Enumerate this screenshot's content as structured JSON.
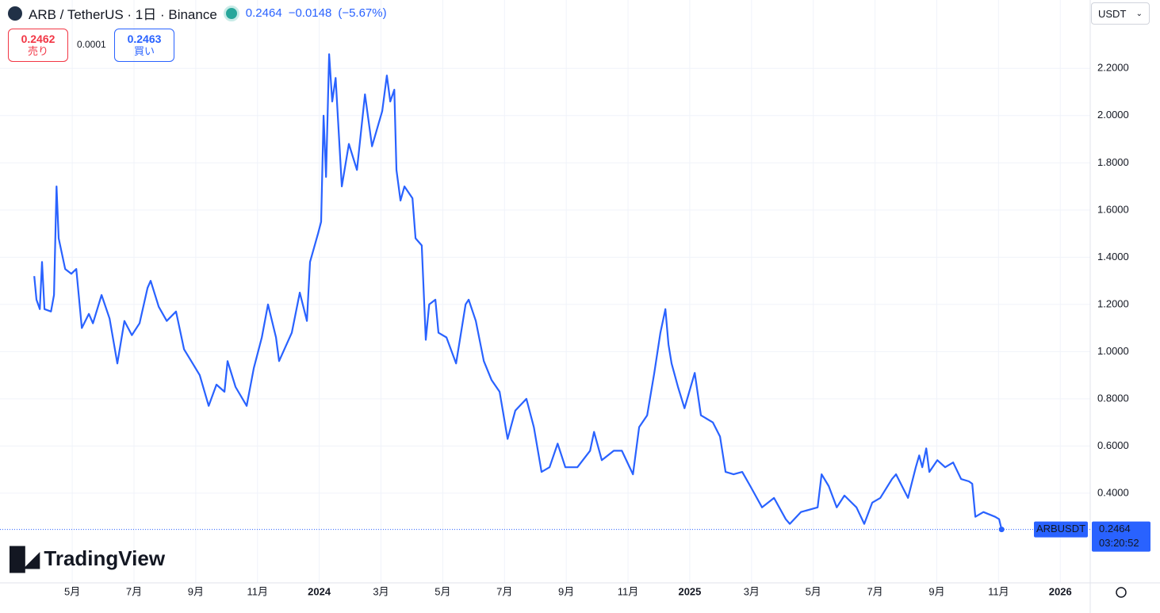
{
  "header": {
    "change": "−0.0148",
    "change_pct": "(−5.67%)",
    "sell_price": "0.2462",
    "sell_label": "売り",
    "spread": "0.0001",
    "buy_price": "0.2463",
    "buy_label": "買い",
    "currency": "USDT",
    "brand": "TradingView",
    "countdown": "03:20:52"
  },
  "chart_data": {
    "type": "line",
    "title": "ARB / TetherUS · 1日 · Binance",
    "x": [
      2.77,
      2.84,
      2.95,
      3.02,
      3.1,
      3.31,
      3.41,
      3.49,
      3.56,
      3.77,
      3.97,
      4.13,
      4.31,
      4.54,
      4.67,
      4.95,
      5.21,
      5.46,
      5.69,
      5.93,
      6.18,
      6.44,
      6.54,
      6.8,
      7.06,
      7.36,
      7.62,
      7.9,
      8.13,
      8.42,
      8.67,
      8.93,
      9.03,
      9.29,
      9.65,
      9.88,
      10.14,
      10.34,
      10.6,
      10.7,
      11.11,
      11.37,
      11.6,
      11.7,
      11.96,
      12.06,
      12.14,
      12.22,
      12.32,
      12.42,
      12.53,
      12.73,
      12.96,
      13.22,
      13.48,
      13.71,
      14.04,
      14.19,
      14.3,
      14.43,
      14.5,
      14.63,
      14.76,
      15.02,
      15.12,
      15.32,
      15.45,
      15.56,
      15.76,
      15.86,
      16.12,
      16.43,
      16.74,
      16.84,
      17.07,
      17.33,
      17.58,
      17.84,
      18.1,
      18.35,
      18.71,
      18.95,
      19.2,
      19.46,
      19.72,
      19.97,
      20.36,
      20.77,
      20.9,
      21.15,
      21.54,
      21.8,
      22.16,
      22.36,
      22.62,
      22.85,
      23.05,
      23.21,
      23.31,
      23.41,
      23.62,
      23.83,
      24.16,
      24.36,
      24.75,
      24.98,
      25.16,
      25.42,
      25.7,
      25.96,
      26.34,
      26.73,
      27.11,
      27.24,
      27.6,
      28.14,
      28.27,
      28.5,
      28.76,
      29.01,
      29.4,
      29.65,
      29.91,
      30.17,
      30.55,
      30.68,
      31.07,
      31.32,
      31.43,
      31.53,
      31.66,
      31.76,
      32.02,
      32.27,
      32.53,
      32.79,
      33.04,
      33.15,
      33.25,
      33.51,
      33.89,
      34.02,
      34.1
    ],
    "series": [
      {
        "name": "ARBUSDT",
        "color": "#2962ff",
        "values": [
          1.32,
          1.22,
          1.18,
          1.38,
          1.18,
          1.17,
          1.24,
          1.7,
          1.48,
          1.35,
          1.33,
          1.35,
          1.1,
          1.16,
          1.12,
          1.24,
          1.14,
          0.95,
          1.13,
          1.07,
          1.12,
          1.27,
          1.3,
          1.19,
          1.13,
          1.17,
          1.01,
          0.95,
          0.9,
          0.77,
          0.86,
          0.83,
          0.96,
          0.85,
          0.77,
          0.93,
          1.06,
          1.2,
          1.06,
          0.96,
          1.08,
          1.25,
          1.13,
          1.38,
          1.5,
          1.55,
          2.0,
          1.74,
          2.26,
          2.06,
          2.16,
          1.7,
          1.88,
          1.77,
          2.09,
          1.87,
          2.02,
          2.17,
          2.06,
          2.11,
          1.77,
          1.64,
          1.7,
          1.65,
          1.48,
          1.45,
          1.05,
          1.2,
          1.22,
          1.08,
          1.06,
          0.95,
          1.2,
          1.22,
          1.13,
          0.96,
          0.88,
          0.83,
          0.63,
          0.75,
          0.8,
          0.68,
          0.49,
          0.51,
          0.61,
          0.51,
          0.51,
          0.58,
          0.66,
          0.54,
          0.58,
          0.58,
          0.48,
          0.68,
          0.73,
          0.91,
          1.08,
          1.18,
          1.03,
          0.95,
          0.85,
          0.76,
          0.91,
          0.73,
          0.7,
          0.64,
          0.49,
          0.48,
          0.49,
          0.43,
          0.34,
          0.38,
          0.29,
          0.27,
          0.32,
          0.34,
          0.48,
          0.43,
          0.34,
          0.39,
          0.34,
          0.27,
          0.36,
          0.38,
          0.46,
          0.48,
          0.38,
          0.51,
          0.56,
          0.51,
          0.59,
          0.49,
          0.54,
          0.51,
          0.53,
          0.46,
          0.45,
          0.44,
          0.3,
          0.32,
          0.3,
          0.29,
          0.2464
        ]
      }
    ],
    "xlim": [
      1.66,
      36.97
    ],
    "xticks": [
      {
        "value": 4,
        "label": "5月"
      },
      {
        "value": 6,
        "label": "7月"
      },
      {
        "value": 8,
        "label": "9月"
      },
      {
        "value": 10,
        "label": "11月"
      },
      {
        "value": 12,
        "label": "2024"
      },
      {
        "value": 14,
        "label": "3月"
      },
      {
        "value": 16,
        "label": "5月"
      },
      {
        "value": 18,
        "label": "7月"
      },
      {
        "value": 20,
        "label": "9月"
      },
      {
        "value": 22,
        "label": "11月"
      },
      {
        "value": 24,
        "label": "2025"
      },
      {
        "value": 26,
        "label": "3月"
      },
      {
        "value": 28,
        "label": "5月"
      },
      {
        "value": 30,
        "label": "7月"
      },
      {
        "value": 32,
        "label": "9月"
      },
      {
        "value": 34,
        "label": "11月"
      },
      {
        "value": 36,
        "label": "2026"
      }
    ],
    "ylim": [
      0.02,
      2.49
    ],
    "yticks": [
      {
        "value": 0.4,
        "label": "0.4000"
      },
      {
        "value": 0.6,
        "label": "0.6000"
      },
      {
        "value": 0.8,
        "label": "0.8000"
      },
      {
        "value": 1.0,
        "label": "1.0000"
      },
      {
        "value": 1.2,
        "label": "1.2000"
      },
      {
        "value": 1.4,
        "label": "1.4000"
      },
      {
        "value": 1.6,
        "label": "1.6000"
      },
      {
        "value": 1.8,
        "label": "1.8000"
      },
      {
        "value": 2.0,
        "label": "2.0000"
      },
      {
        "value": 2.2,
        "label": "2.2000"
      }
    ],
    "grid": true
  }
}
